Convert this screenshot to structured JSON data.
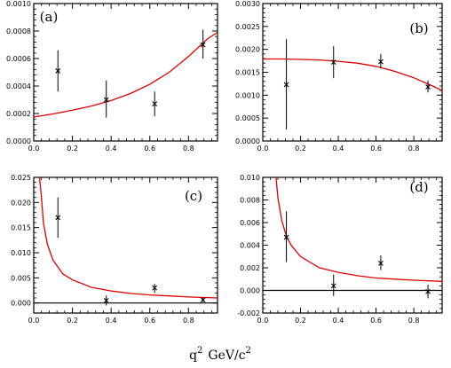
{
  "chart_data": [
    {
      "panel": "(a)",
      "type": "scatter",
      "xlim": [
        0,
        0.95
      ],
      "ylim": [
        0,
        0.001
      ],
      "xticks": [
        "0.0",
        "0.2",
        "0.4",
        "0.6",
        "0.8"
      ],
      "yticks": [
        "0.0000",
        "0.0002",
        "0.0004",
        "0.0006",
        "0.0008",
        "0.0010"
      ],
      "points": [
        {
          "x": 0.125,
          "y": 0.00051,
          "ylo": 0.00036,
          "yhi": 0.00066
        },
        {
          "x": 0.375,
          "y": 0.0003,
          "ylo": 0.00017,
          "yhi": 0.00044
        },
        {
          "x": 0.625,
          "y": 0.00027,
          "ylo": 0.00018,
          "yhi": 0.00036
        },
        {
          "x": 0.875,
          "y": 0.0007,
          "ylo": 0.0006,
          "yhi": 0.00081
        }
      ],
      "curve": {
        "x": [
          0,
          0.1,
          0.2,
          0.3,
          0.4,
          0.5,
          0.6,
          0.7,
          0.8,
          0.85,
          0.9,
          0.95
        ],
        "y": [
          0.000175,
          0.000197,
          0.000224,
          0.000255,
          0.000294,
          0.000345,
          0.000412,
          0.0005,
          0.000615,
          0.00068,
          0.000745,
          0.00079
        ]
      },
      "zero_line": false
    },
    {
      "panel": "(b)",
      "type": "scatter",
      "xlim": [
        0,
        0.95
      ],
      "ylim": [
        0,
        0.003
      ],
      "xticks": [
        "0.0",
        "0.2",
        "0.4",
        "0.6",
        "0.8"
      ],
      "yticks": [
        "0.0000",
        "0.0005",
        "0.0010",
        "0.0015",
        "0.0020",
        "0.0025",
        "0.0030"
      ],
      "points": [
        {
          "x": 0.125,
          "y": 0.00123,
          "ylo": 0.00025,
          "yhi": 0.00222
        },
        {
          "x": 0.375,
          "y": 0.00172,
          "ylo": 0.00137,
          "yhi": 0.00207
        },
        {
          "x": 0.625,
          "y": 0.00173,
          "ylo": 0.00158,
          "yhi": 0.0019
        },
        {
          "x": 0.875,
          "y": 0.00118,
          "ylo": 0.00106,
          "yhi": 0.00132
        }
      ],
      "curve": {
        "x": [
          0,
          0.1,
          0.2,
          0.3,
          0.4,
          0.5,
          0.6,
          0.7,
          0.8,
          0.9,
          0.95
        ],
        "y": [
          0.00179,
          0.00179,
          0.00178,
          0.00177,
          0.00174,
          0.0017,
          0.00163,
          0.00152,
          0.00138,
          0.0012,
          0.0011
        ]
      },
      "zero_line": false
    },
    {
      "panel": "(c)",
      "type": "scatter",
      "xlim": [
        0,
        0.95
      ],
      "ylim": [
        -0.002,
        0.025
      ],
      "xticks": [
        "0.0",
        "0.2",
        "0.4",
        "0.6",
        "0.8"
      ],
      "yticks": [
        "0.000",
        "0.005",
        "0.010",
        "0.015",
        "0.020",
        "0.025"
      ],
      "points": [
        {
          "x": 0.125,
          "y": 0.017,
          "ylo": 0.013,
          "yhi": 0.021
        },
        {
          "x": 0.375,
          "y": 0.0005,
          "ylo": -0.0005,
          "yhi": 0.0015
        },
        {
          "x": 0.625,
          "y": 0.003,
          "ylo": 0.002,
          "yhi": 0.0038
        },
        {
          "x": 0.875,
          "y": 0.0006,
          "ylo": 0.0002,
          "yhi": 0.001
        }
      ],
      "curve": {
        "x": [
          0.03,
          0.04,
          0.05,
          0.07,
          0.1,
          0.15,
          0.2,
          0.3,
          0.4,
          0.5,
          0.6,
          0.7,
          0.8,
          0.95
        ],
        "y": [
          0.025,
          0.021,
          0.016,
          0.0117,
          0.0085,
          0.0058,
          0.0046,
          0.0031,
          0.0024,
          0.0019,
          0.0016,
          0.0014,
          0.0012,
          0.001
        ]
      },
      "zero_line": true
    },
    {
      "panel": "(d)",
      "type": "scatter",
      "xlim": [
        0,
        0.95
      ],
      "ylim": [
        -0.002,
        0.01
      ],
      "xticks": [
        "0.0",
        "0.2",
        "0.4",
        "0.6",
        "0.8"
      ],
      "yticks": [
        "-0.002",
        "0.000",
        "0.002",
        "0.004",
        "0.006",
        "0.008",
        "0.010"
      ],
      "points": [
        {
          "x": 0.125,
          "y": 0.0047,
          "ylo": 0.0025,
          "yhi": 0.007
        },
        {
          "x": 0.375,
          "y": 0.0004,
          "ylo": -0.0005,
          "yhi": 0.0014
        },
        {
          "x": 0.625,
          "y": 0.0024,
          "ylo": 0.0018,
          "yhi": 0.0031
        },
        {
          "x": 0.875,
          "y": -0.0001,
          "ylo": -0.0007,
          "yhi": 0.0005
        }
      ],
      "curve": {
        "x": [
          0.07,
          0.08,
          0.1,
          0.125,
          0.15,
          0.2,
          0.3,
          0.4,
          0.5,
          0.6,
          0.7,
          0.8,
          0.95
        ],
        "y": [
          0.01,
          0.0082,
          0.0062,
          0.0048,
          0.004,
          0.003,
          0.002,
          0.0016,
          0.0013,
          0.0011,
          0.001,
          0.0009,
          0.0008
        ]
      },
      "zero_line": true
    }
  ],
  "xlabel_base": "q",
  "xlabel_exp": "2",
  "xlabel_unit": "GeV/c",
  "xlabel_unit_exp": "2",
  "colors": {
    "curve": "#e00000",
    "points": "#000000"
  }
}
